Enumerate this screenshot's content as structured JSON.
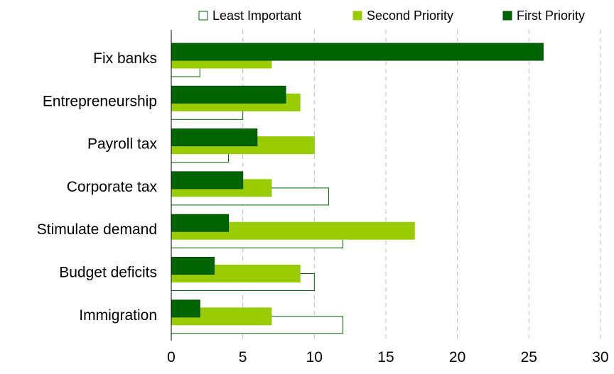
{
  "chart_data": {
    "type": "bar",
    "orientation": "horizontal",
    "title": "",
    "xlabel": "",
    "ylabel": "",
    "categories": [
      "Fix banks",
      "Entrepreneurship",
      "Payroll tax",
      "Corporate tax",
      "Stimulate demand",
      "Budget deficits",
      "Immigration"
    ],
    "series": [
      {
        "name": "Least Important",
        "values": [
          2,
          5,
          4,
          11,
          12,
          10,
          12
        ],
        "color": "#ffffff",
        "stroke": "#006400"
      },
      {
        "name": "Second Priority",
        "values": [
          7,
          9,
          10,
          7,
          17,
          9,
          7
        ],
        "color": "#99cc00",
        "stroke": "#99cc00"
      },
      {
        "name": "First Priority",
        "values": [
          26,
          8,
          6,
          5,
          4,
          3,
          2
        ],
        "color": "#006400",
        "stroke": "#004d00"
      }
    ],
    "xlim": [
      0,
      30
    ],
    "xticks": [
      "0",
      "5",
      "10",
      "15",
      "20",
      "25",
      "30"
    ],
    "grid": "vertical dashed",
    "legend": "top"
  }
}
